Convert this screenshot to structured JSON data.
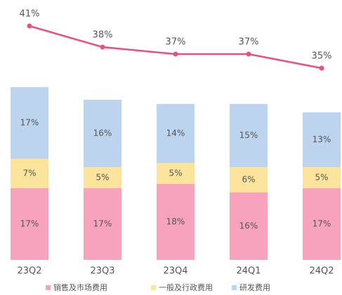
{
  "chart_data": {
    "type": "bar",
    "stacked": true,
    "categories": [
      "23Q2",
      "23Q3",
      "23Q4",
      "24Q1",
      "24Q2"
    ],
    "series": [
      {
        "name": "销售及市场费用",
        "color": "#f8a3bd",
        "values": [
          17,
          17,
          18,
          16,
          17
        ],
        "value_labels": [
          "17%",
          "17%",
          "18%",
          "16%",
          "17%"
        ]
      },
      {
        "name": "一般及行政费用",
        "color": "#fce49c",
        "values": [
          7,
          5,
          5,
          6,
          5
        ],
        "value_labels": [
          "7%",
          "5%",
          "5%",
          "6%",
          "5%"
        ]
      },
      {
        "name": "研发费用",
        "color": "#bcd4ee",
        "values": [
          17,
          16,
          14,
          15,
          13
        ],
        "value_labels": [
          "17%",
          "16%",
          "14%",
          "15%",
          "13%"
        ]
      },
      {
        "type": "line",
        "color": "#e8517f",
        "values": [
          41,
          38,
          37,
          37,
          35
        ],
        "value_labels": [
          "41%",
          "38%",
          "37%",
          "37%",
          "35%"
        ]
      }
    ]
  }
}
